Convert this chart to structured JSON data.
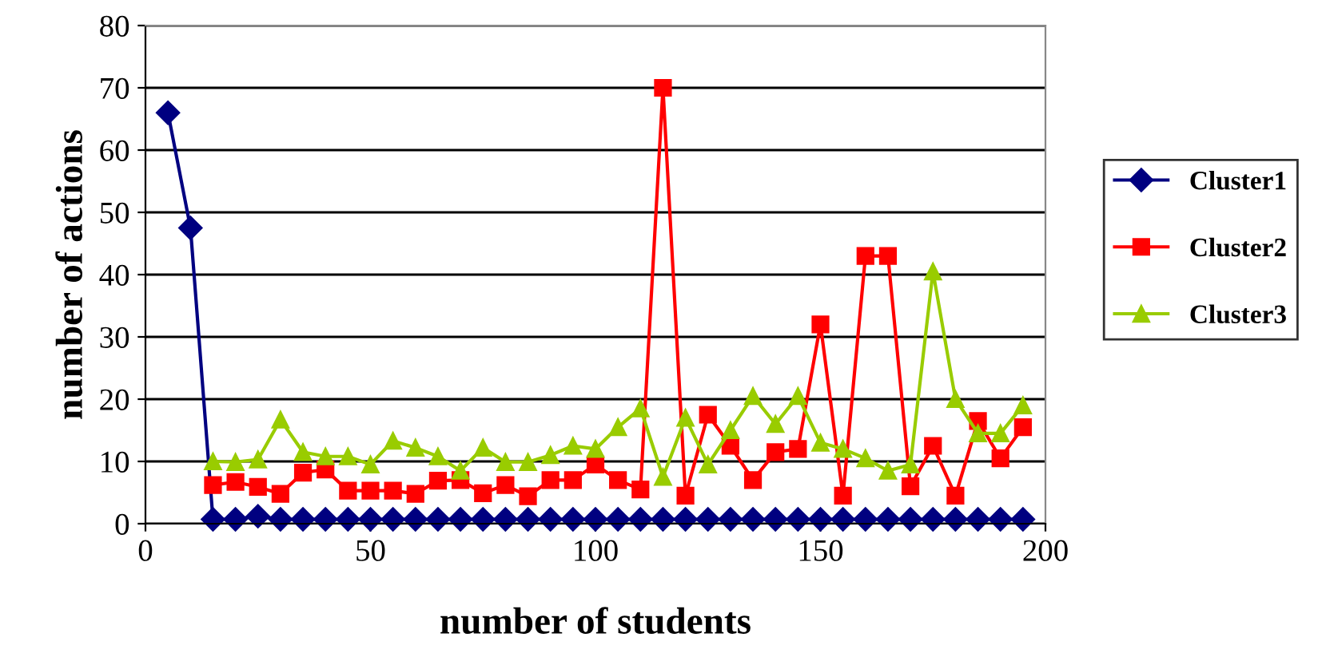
{
  "chart_data": {
    "type": "line",
    "xlabel": "number of students",
    "ylabel": "number of actions",
    "xlim": [
      0,
      200
    ],
    "ylim": [
      0,
      80
    ],
    "xticks": [
      0,
      50,
      100,
      150,
      200
    ],
    "yticks": [
      0,
      10,
      20,
      30,
      40,
      50,
      60,
      70,
      80
    ],
    "grid": "y",
    "legend": "right",
    "series": [
      {
        "name": "Cluster1",
        "color": "#000080",
        "marker": "diamond",
        "x": [
          5,
          10,
          15,
          20,
          25,
          30,
          35,
          40,
          45,
          50,
          55,
          60,
          65,
          70,
          75,
          80,
          85,
          90,
          95,
          100,
          105,
          110,
          115,
          120,
          125,
          130,
          135,
          140,
          145,
          150,
          155,
          160,
          165,
          170,
          175,
          180,
          185,
          190,
          195
        ],
        "values": [
          66,
          47.5,
          0.7,
          0.7,
          1.2,
          0.7,
          0.7,
          0.7,
          0.7,
          0.7,
          0.7,
          0.7,
          0.7,
          0.7,
          0.7,
          0.7,
          0.7,
          0.7,
          0.7,
          0.7,
          0.7,
          0.7,
          0.7,
          0.7,
          0.7,
          0.7,
          0.7,
          0.7,
          0.7,
          0.7,
          0.7,
          0.7,
          0.7,
          0.7,
          0.7,
          0.7,
          0.7,
          0.7,
          0.7
        ]
      },
      {
        "name": "Cluster2",
        "color": "#ff0000",
        "marker": "square",
        "x": [
          15,
          20,
          25,
          30,
          35,
          40,
          45,
          50,
          55,
          60,
          65,
          70,
          75,
          80,
          85,
          90,
          95,
          100,
          105,
          110,
          115,
          120,
          125,
          130,
          135,
          140,
          145,
          150,
          155,
          160,
          165,
          170,
          175,
          180,
          185,
          190,
          195
        ],
        "values": [
          6.2,
          6.7,
          5.9,
          4.8,
          8.2,
          8.7,
          5.3,
          5.3,
          5.3,
          4.8,
          6.9,
          7,
          4.9,
          6.2,
          4.4,
          7,
          7,
          9.5,
          7,
          5.5,
          70,
          4.5,
          17.5,
          12.5,
          7,
          11.5,
          12,
          32,
          4.5,
          43,
          43,
          6,
          12.5,
          4.5,
          16.5,
          10.5,
          15.5
        ]
      },
      {
        "name": "Cluster3",
        "color": "#99cc00",
        "marker": "triangle",
        "x": [
          15,
          20,
          25,
          30,
          35,
          40,
          45,
          50,
          55,
          60,
          65,
          70,
          75,
          80,
          85,
          90,
          95,
          100,
          105,
          110,
          115,
          120,
          125,
          130,
          135,
          140,
          145,
          150,
          155,
          160,
          165,
          170,
          175,
          180,
          185,
          190,
          195
        ],
        "values": [
          10,
          9.9,
          10.3,
          16.7,
          11.5,
          10.8,
          10.8,
          9.5,
          13.3,
          12.2,
          10.8,
          8.5,
          12.2,
          9.9,
          9.9,
          11,
          12.5,
          12,
          15.5,
          18.5,
          7.5,
          17,
          9.5,
          15,
          20.5,
          16,
          20.5,
          13,
          12,
          10.5,
          8.5,
          9.5,
          40.5,
          20,
          14.5,
          14.5,
          19
        ]
      }
    ]
  }
}
